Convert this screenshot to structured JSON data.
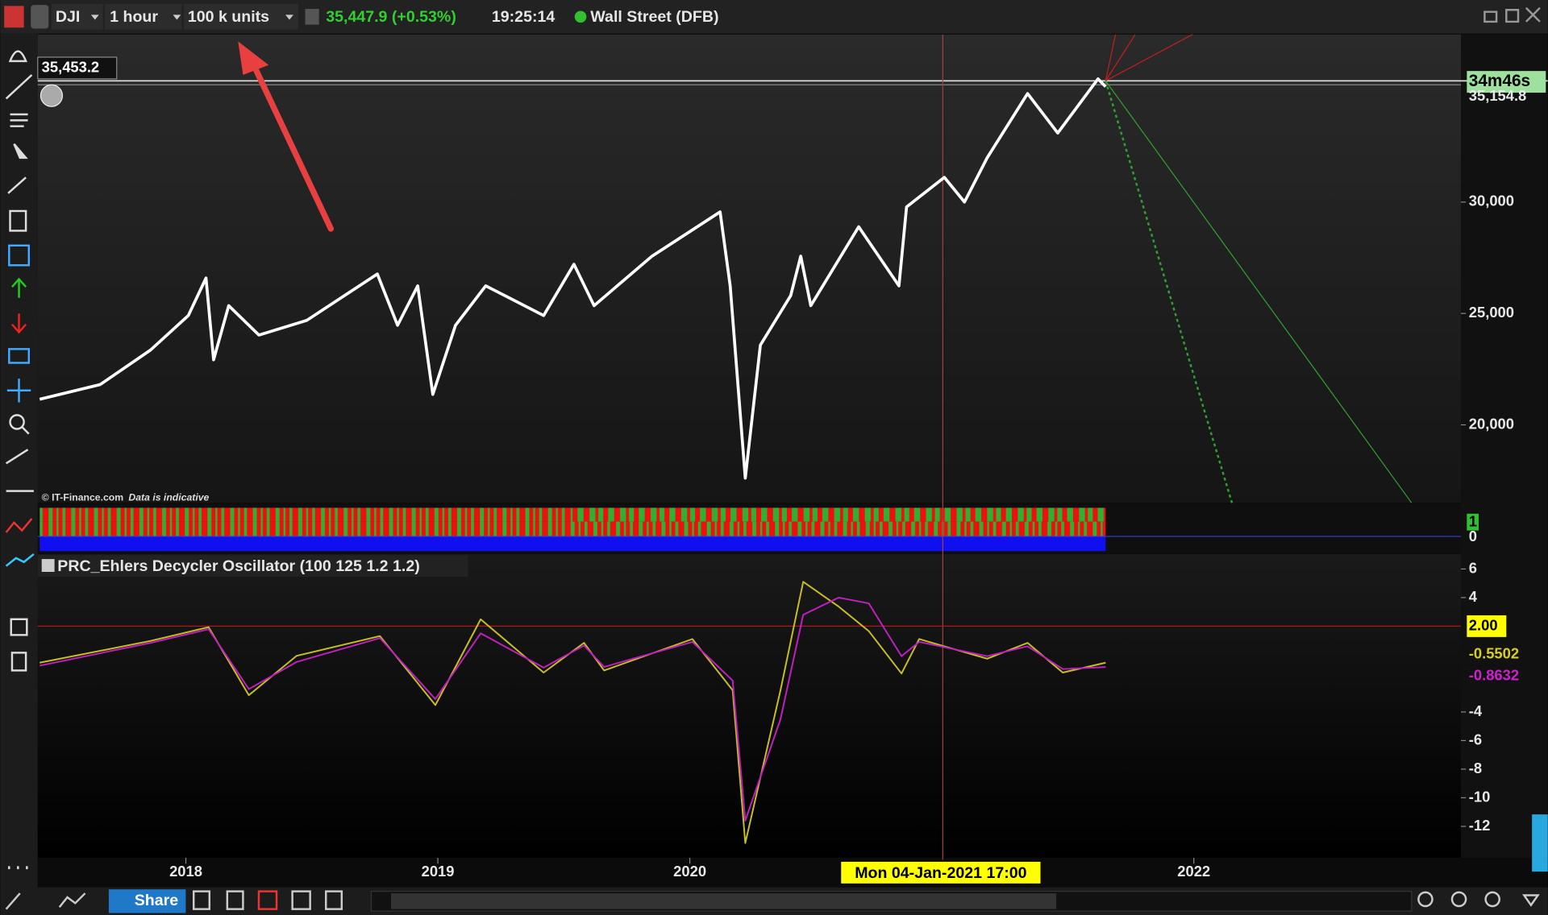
{
  "toolbar": {
    "symbol": "DJI",
    "timeframe": "1 hour",
    "size": "100 k units",
    "price": "35,447.9 (+0.53%)",
    "time": "19:25:14",
    "market": "Wall Street (DFB)"
  },
  "price_panel": {
    "cursor_price": "35,453.2",
    "bid_label": "35,154.8",
    "countdown": "34m46s",
    "copyright": "© IT-Finance.com",
    "disclaimer": "Data is indicative"
  },
  "signal_panel": {
    "labels": [
      "1",
      "0"
    ]
  },
  "indicator": {
    "title": "PRC_Ehlers Decycler Oscillator (100 125 1.2 1.2)",
    "last_labels": [
      "-0.5502",
      "-0.8632"
    ]
  },
  "cursor_date": "Mon 04-Jan-2021 17:00",
  "bottom_bar": {
    "share": "Share"
  },
  "chart_data": [
    {
      "type": "line",
      "xlim": [
        2017.42,
        2023.06
      ],
      "xticks": [
        2018,
        2019,
        2020,
        2022
      ],
      "ylim": [
        16500,
        37520
      ],
      "yticks": [
        {
          "value": 20000,
          "label": "20,000"
        },
        {
          "value": 25000,
          "label": "25,000"
        },
        {
          "value": 30000,
          "label": "30,000"
        }
      ],
      "x": [
        2017.42,
        2017.66,
        2017.86,
        2018.01,
        2018.08,
        2018.11,
        2018.17,
        2018.29,
        2018.48,
        2018.76,
        2018.84,
        2018.92,
        2018.98,
        2019.07,
        2019.19,
        2019.42,
        2019.54,
        2019.62,
        2019.85,
        2020.12,
        2020.16,
        2020.22,
        2020.28,
        2020.4,
        2020.44,
        2020.48,
        2020.67,
        2020.83,
        2020.86,
        2021.01,
        2021.09,
        2021.18,
        2021.34,
        2021.46,
        2021.62,
        2021.65
      ],
      "series": [
        {
          "color": "#ffffff",
          "values": [
            21150,
            21810,
            23360,
            24910,
            26590,
            22920,
            25350,
            24030,
            24690,
            26770,
            24470,
            26240,
            21370,
            24470,
            26240,
            24910,
            27210,
            25350,
            27570,
            29560,
            26240,
            17610,
            23580,
            25800,
            27570,
            25350,
            28890,
            26240,
            29780,
            31110,
            30000,
            31990,
            34870,
            33100,
            35530,
            35180
          ]
        }
      ]
    },
    {
      "type": "line",
      "xlim": [
        2017.42,
        2023.06
      ],
      "ylim": [
        -14.2,
        6.97
      ],
      "yticks": [
        6,
        4,
        -4,
        -6,
        -8,
        -10,
        -12
      ],
      "level": {
        "value": 2,
        "label": "2.00",
        "color": "#b01818"
      },
      "x": [
        2017.42,
        2017.86,
        2018.09,
        2018.25,
        2018.44,
        2018.77,
        2018.99,
        2019.17,
        2019.42,
        2019.58,
        2019.66,
        2020.01,
        2020.17,
        2020.22,
        2020.36,
        2020.45,
        2020.59,
        2020.71,
        2020.84,
        2020.91,
        2021.18,
        2021.34,
        2021.48,
        2021.65
      ],
      "series": [
        {
          "color": "#c8c020",
          "values": [
            -0.55,
            0.97,
            1.93,
            -2.83,
            -0.07,
            1.31,
            -3.52,
            2.48,
            -1.24,
            0.83,
            -1.1,
            1.1,
            -2.48,
            -13.17,
            -2.48,
            5.1,
            3.38,
            1.66,
            -1.31,
            1.1,
            -0.28,
            0.83,
            -1.24,
            -0.55
          ]
        },
        {
          "color": "#c020c0",
          "values": [
            -0.76,
            0.83,
            1.79,
            -2.4,
            -0.5,
            1.17,
            -3.1,
            1.5,
            -0.9,
            0.65,
            -0.85,
            0.9,
            -1.8,
            -11.6,
            -4.5,
            2.8,
            4.0,
            3.6,
            -0.1,
            0.9,
            -0.1,
            0.6,
            -1.0,
            -0.86
          ]
        }
      ]
    }
  ]
}
